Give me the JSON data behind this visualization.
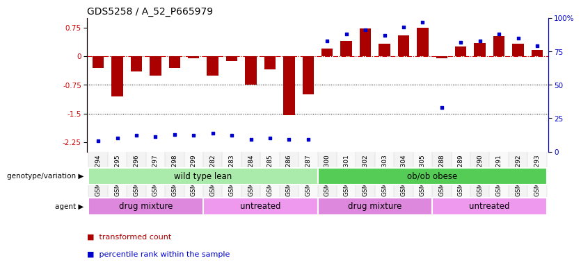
{
  "title": "GDS5258 / A_52_P665979",
  "samples": [
    "GSM1195294",
    "GSM1195295",
    "GSM1195296",
    "GSM1195297",
    "GSM1195298",
    "GSM1195299",
    "GSM1195282",
    "GSM1195283",
    "GSM1195284",
    "GSM1195285",
    "GSM1195286",
    "GSM1195287",
    "GSM1195300",
    "GSM1195301",
    "GSM1195302",
    "GSM1195303",
    "GSM1195304",
    "GSM1195305",
    "GSM1195288",
    "GSM1195289",
    "GSM1195290",
    "GSM1195291",
    "GSM1195292",
    "GSM1195293"
  ],
  "bar_values": [
    -0.3,
    -1.05,
    -0.4,
    -0.5,
    -0.3,
    -0.05,
    -0.5,
    -0.12,
    -0.75,
    -0.35,
    -1.55,
    -1.0,
    0.2,
    0.4,
    0.72,
    0.32,
    0.55,
    0.75,
    -0.05,
    0.25,
    0.35,
    0.52,
    0.32,
    0.16
  ],
  "percentile_values": [
    8,
    10,
    12,
    11,
    13,
    12,
    14,
    12,
    9,
    10,
    9,
    9,
    83,
    88,
    91,
    87,
    93,
    97,
    33,
    82,
    83,
    88,
    85,
    79
  ],
  "bar_color": "#AA0000",
  "scatter_color": "#0000CC",
  "ylim_left": [
    -2.5,
    1.0
  ],
  "ylim_right": [
    0,
    100
  ],
  "yticks_left": [
    0.75,
    0,
    -0.75,
    -1.5,
    -2.25
  ],
  "yticks_right": [
    100,
    75,
    50,
    25,
    0
  ],
  "dotted_lines": [
    -0.75,
    -1.5
  ],
  "genotype_groups": [
    {
      "label": "wild type lean",
      "start": 0,
      "end": 11,
      "color": "#AAEAAA"
    },
    {
      "label": "ob/ob obese",
      "start": 12,
      "end": 23,
      "color": "#55CC55"
    }
  ],
  "agent_groups": [
    {
      "label": "drug mixture",
      "start": 0,
      "end": 5,
      "color": "#DD88DD"
    },
    {
      "label": "untreated",
      "start": 6,
      "end": 11,
      "color": "#EE99EE"
    },
    {
      "label": "drug mixture",
      "start": 12,
      "end": 17,
      "color": "#DD88DD"
    },
    {
      "label": "untreated",
      "start": 18,
      "end": 23,
      "color": "#EE99EE"
    }
  ],
  "legend_items": [
    {
      "label": "transformed count",
      "color": "#AA0000"
    },
    {
      "label": "percentile rank within the sample",
      "color": "#0000CC"
    }
  ],
  "bar_width": 0.6,
  "background_color": "#FFFFFF",
  "title_fontsize": 10,
  "tick_fontsize": 6.5,
  "label_fontsize": 8.5
}
